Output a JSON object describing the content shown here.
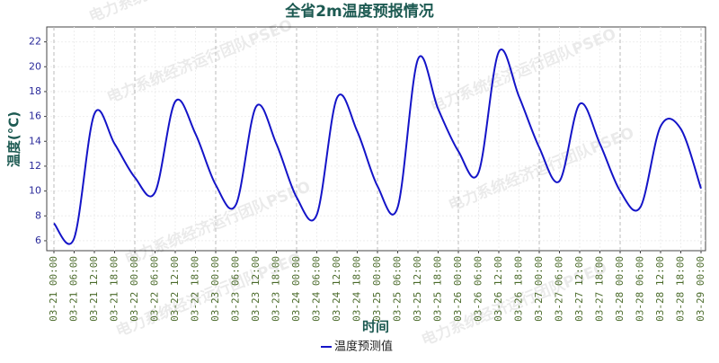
{
  "chart_data": {
    "type": "line",
    "title": "全省2m温度预报情况",
    "xlabel": "时间",
    "ylabel": "温度(°C)",
    "watermark": "电力系统经济运行团队PSEO",
    "categories": [
      "03-21 00:00",
      "03-21 06:00",
      "03-21 12:00",
      "03-21 18:00",
      "03-22 00:00",
      "03-22 06:00",
      "03-22 12:00",
      "03-22 18:00",
      "03-23 00:00",
      "03-23 06:00",
      "03-23 12:00",
      "03-23 18:00",
      "03-24 00:00",
      "03-24 06:00",
      "03-24 12:00",
      "03-24 18:00",
      "03-25 00:00",
      "03-25 06:00",
      "03-25 12:00",
      "03-25 18:00",
      "03-26 00:00",
      "03-26 06:00",
      "03-26 12:00",
      "03-26 18:00",
      "03-27 00:00",
      "03-27 06:00",
      "03-27 12:00",
      "03-27 18:00",
      "03-28 00:00",
      "03-28 06:00",
      "03-28 12:00",
      "03-28 18:00",
      "03-29 00:00"
    ],
    "series": [
      {
        "name": "温度预测值",
        "color": "#1414c8",
        "values": [
          7.4,
          6.2,
          16.2,
          13.8,
          11.1,
          9.9,
          17.2,
          14.6,
          10.5,
          8.9,
          16.8,
          13.8,
          9.5,
          8.1,
          17.5,
          14.8,
          10.4,
          8.7,
          20.6,
          16.6,
          13.2,
          11.5,
          21.2,
          17.6,
          13.5,
          10.8,
          17.0,
          13.8,
          10.0,
          8.7,
          15.2,
          15.0,
          10.2
        ]
      }
    ],
    "ylim": [
      5.2,
      23.2
    ],
    "yticks": [
      6,
      8,
      10,
      12,
      14,
      16,
      18,
      20,
      22
    ],
    "grid": true,
    "legend": "bottom"
  }
}
